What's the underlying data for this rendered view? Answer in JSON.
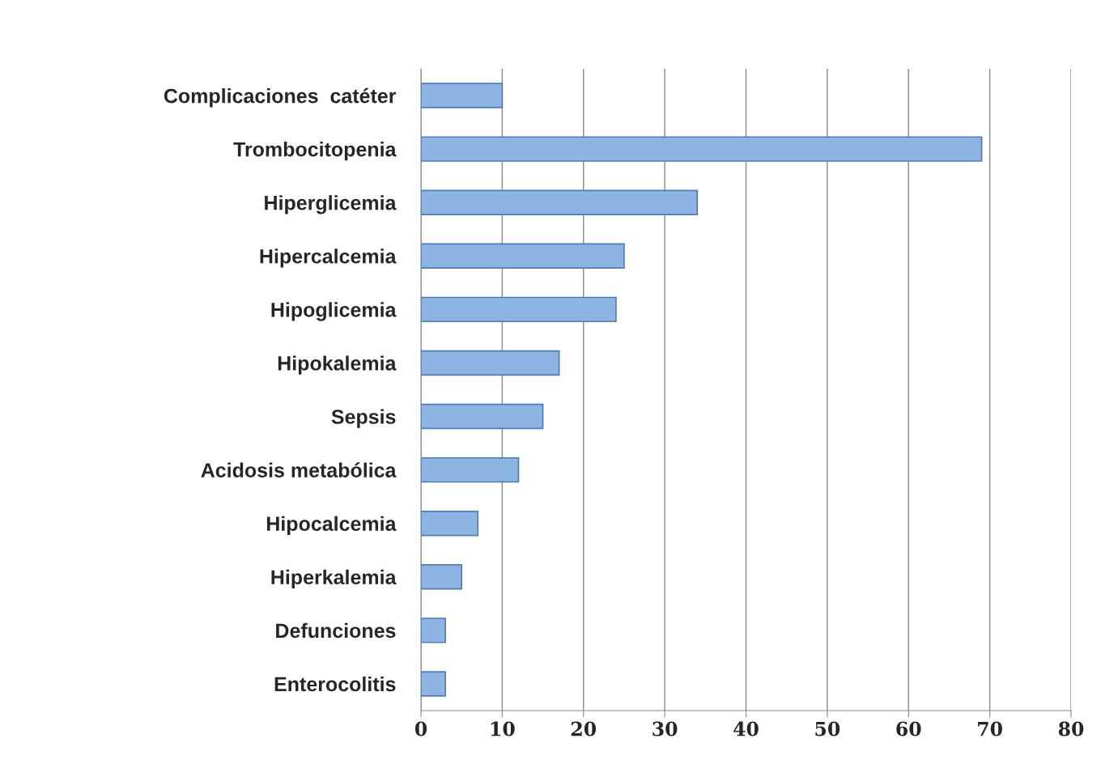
{
  "chart_data": {
    "type": "bar",
    "orientation": "horizontal",
    "categories": [
      "Complicaciones  catéter",
      "Trombocitopenia",
      "Hiperglicemia",
      "Hipercalcemia",
      "Hipoglicemia",
      "Hipokalemia",
      "Sepsis",
      "Acidosis metabólica",
      "Hipocalcemia",
      "Hiperkalemia",
      "Defunciones",
      "Enterocolitis"
    ],
    "values": [
      10,
      69,
      34,
      25,
      24,
      17,
      15,
      12,
      7,
      5,
      3,
      3
    ],
    "color": "#8db4e2",
    "xlim": [
      0,
      80
    ],
    "xticks": [
      0,
      10,
      20,
      30,
      40,
      50,
      60,
      70,
      80
    ],
    "grid": "x",
    "legend": false
  }
}
